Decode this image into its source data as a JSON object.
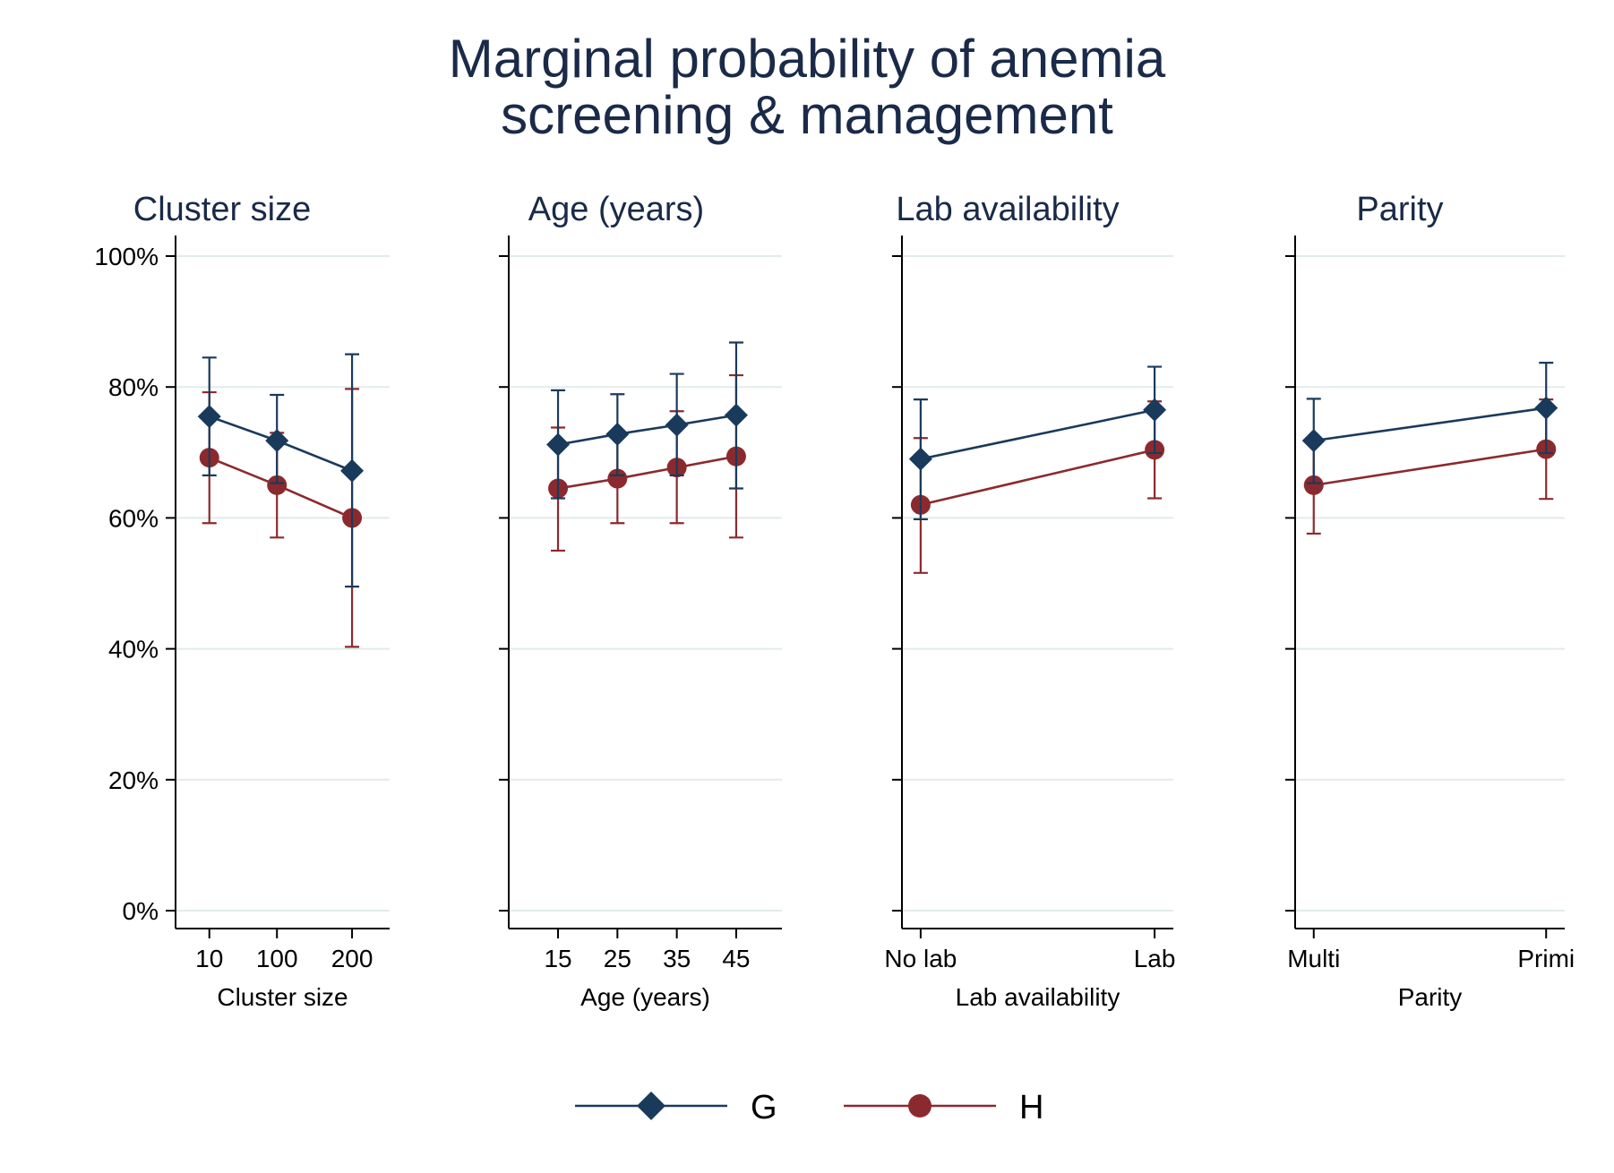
{
  "title_lines": [
    "Marginal probability of anemia",
    "screening & management"
  ],
  "colors": {
    "G": "#1a3a5c",
    "H": "#8b2a2e",
    "grid": "#e3ebea",
    "text": "#1a2a48"
  },
  "legend": {
    "items": [
      "G",
      "H"
    ]
  },
  "y_tick_labels": [
    "0%",
    "20%",
    "40%",
    "60%",
    "80%",
    "100%"
  ],
  "chart_data": [
    {
      "type": "line",
      "title": "Cluster size",
      "xlabel": "Cluster size",
      "ylim": [
        0,
        100
      ],
      "y_unit": "%",
      "categories": [
        "10",
        "100",
        "200"
      ],
      "x": [
        10,
        100,
        200
      ],
      "xlim": [
        -35,
        250
      ],
      "series": [
        {
          "name": "G",
          "marker": "diamond",
          "values": [
            75.5,
            71.8,
            67.2
          ],
          "ci_low": [
            66.5,
            65.3,
            49.5
          ],
          "ci_high": [
            84.5,
            78.8,
            85.0
          ]
        },
        {
          "name": "H",
          "marker": "circle",
          "values": [
            69.2,
            65.0,
            60.0
          ],
          "ci_low": [
            59.2,
            57.0,
            40.3
          ],
          "ci_high": [
            79.2,
            73.0,
            79.7
          ]
        }
      ]
    },
    {
      "type": "line",
      "title": "Age (years)",
      "xlabel": "Age (years)",
      "ylim": [
        0,
        100
      ],
      "y_unit": "%",
      "categories": [
        "15",
        "25",
        "35",
        "45"
      ],
      "x": [
        15,
        25,
        35,
        45
      ],
      "xlim": [
        6.7,
        52.7
      ],
      "series": [
        {
          "name": "G",
          "marker": "diamond",
          "values": [
            71.2,
            72.8,
            74.2,
            75.7
          ],
          "ci_low": [
            63.0,
            66.5,
            66.5,
            64.5
          ],
          "ci_high": [
            79.5,
            78.9,
            82.0,
            86.8
          ]
        },
        {
          "name": "H",
          "marker": "circle",
          "values": [
            64.5,
            66.0,
            67.7,
            69.4
          ],
          "ci_low": [
            55.0,
            59.2,
            59.2,
            57.0
          ],
          "ci_high": [
            73.8,
            72.8,
            76.3,
            81.8
          ]
        }
      ]
    },
    {
      "type": "line",
      "title": "Lab availability",
      "xlabel": "Lab availability",
      "ylim": [
        0,
        100
      ],
      "y_unit": "%",
      "categories": [
        "No lab",
        "Lab"
      ],
      "x": [
        0,
        1
      ],
      "xlim": [
        -0.08,
        1.08
      ],
      "series": [
        {
          "name": "G",
          "marker": "diamond",
          "values": [
            69.0,
            76.5
          ],
          "ci_low": [
            59.8,
            69.9
          ],
          "ci_high": [
            78.1,
            83.1
          ]
        },
        {
          "name": "H",
          "marker": "circle",
          "values": [
            62.0,
            70.4
          ],
          "ci_low": [
            51.6,
            63.0
          ],
          "ci_high": [
            72.2,
            77.8
          ]
        }
      ]
    },
    {
      "type": "line",
      "title": "Parity",
      "xlabel": "Parity",
      "ylim": [
        0,
        100
      ],
      "y_unit": "%",
      "categories": [
        "Multi",
        "Primi"
      ],
      "x": [
        0,
        1
      ],
      "xlim": [
        -0.08,
        1.08
      ],
      "series": [
        {
          "name": "G",
          "marker": "diamond",
          "values": [
            71.8,
            76.8
          ],
          "ci_low": [
            65.3,
            69.9
          ],
          "ci_high": [
            78.2,
            83.7
          ]
        },
        {
          "name": "H",
          "marker": "circle",
          "values": [
            65.0,
            70.5
          ],
          "ci_low": [
            57.6,
            62.9
          ],
          "ci_high": [
            72.3,
            78.1
          ]
        }
      ]
    }
  ]
}
